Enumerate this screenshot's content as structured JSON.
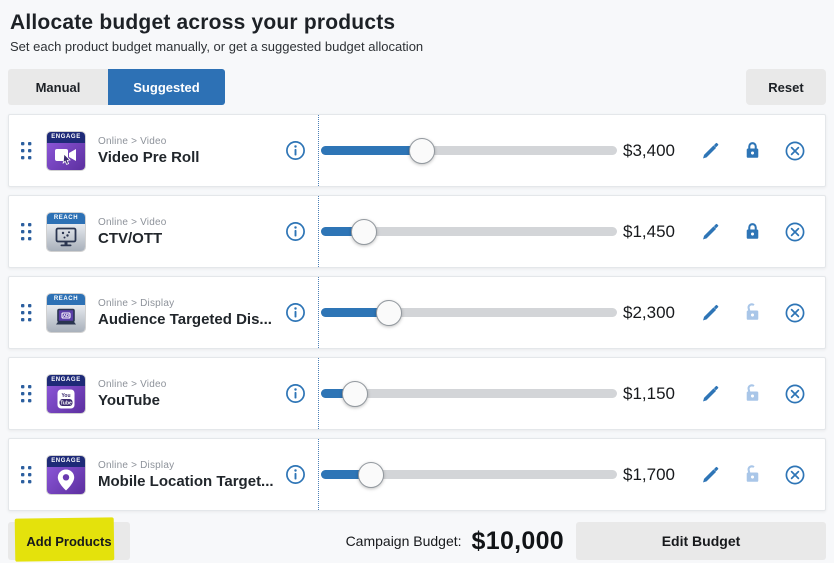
{
  "header": {
    "title": "Allocate budget across your products",
    "subtitle": "Set each product budget manually, or get a suggested budget allocation"
  },
  "tabs": [
    {
      "label": "Manual",
      "active": false
    },
    {
      "label": "Suggested",
      "active": true
    }
  ],
  "reset_label": "Reset",
  "products": [
    {
      "badge": "ENGAGE",
      "badge_type": "engage",
      "icon": "video-camera-icon",
      "category": "Online > Video",
      "name": "Video Pre Roll",
      "value": "$3,400",
      "percent": 34,
      "locked": true
    },
    {
      "badge": "REACH",
      "badge_type": "reach",
      "icon": "tv-monitor-icon",
      "category": "Online > Video",
      "name": "CTV/OTT",
      "value": "$1,450",
      "percent": 14.5,
      "locked": true
    },
    {
      "badge": "REACH",
      "badge_type": "reach",
      "icon": "laptop-ad-icon",
      "category": "Online > Display",
      "name": "Audience Targeted Dis...",
      "value": "$2,300",
      "percent": 23,
      "locked": false
    },
    {
      "badge": "ENGAGE",
      "badge_type": "engage",
      "icon": "youtube-icon",
      "category": "Online > Video",
      "name": "YouTube",
      "value": "$1,150",
      "percent": 11.5,
      "locked": false
    },
    {
      "badge": "ENGAGE",
      "badge_type": "engage",
      "icon": "location-pin-icon",
      "category": "Online > Display",
      "name": "Mobile Location Target...",
      "value": "$1,700",
      "percent": 17,
      "locked": false
    }
  ],
  "footer": {
    "add_products_label": "Add Products",
    "campaign_budget_label": "Campaign Budget:",
    "campaign_budget_value": "$10,000",
    "edit_budget_label": "Edit Budget"
  },
  "colors": {
    "accent_blue": "#2e75b6",
    "tab_active_blue": "#2d71b5",
    "locked_lock": "#2e75b6",
    "unlocked_lock": "#a9c6e8",
    "highlight_yellow": "#e4e20c",
    "button_gray": "#e9e9e9"
  }
}
